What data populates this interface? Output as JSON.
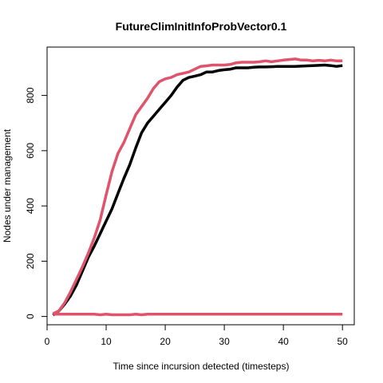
{
  "chart_data": {
    "type": "line",
    "title": "FutureClimInitInfoProbVector0.1",
    "xlabel": "Time since incursion detected (timesteps)",
    "ylabel": "Nodes under management",
    "xlim": [
      0,
      52
    ],
    "ylim": [
      -30,
      975
    ],
    "xticks": [
      0,
      10,
      20,
      30,
      40,
      50
    ],
    "yticks": [
      0,
      200,
      400,
      600,
      800
    ],
    "grid": false,
    "colors": {
      "black": "#000000",
      "red": "#DF536B"
    },
    "series": [
      {
        "color": "#000000",
        "x": [
          1,
          2,
          3,
          4,
          5,
          6,
          7,
          8,
          9,
          10,
          11,
          12,
          13,
          14,
          15,
          16,
          17,
          18,
          19,
          20,
          21,
          22,
          23,
          24,
          25,
          26,
          27,
          28,
          29,
          30,
          31,
          32,
          33,
          34,
          35,
          36,
          37,
          38,
          39,
          40,
          41,
          42,
          43,
          44,
          45,
          46,
          47,
          48,
          49,
          50
        ],
        "y": [
          5,
          20,
          45,
          75,
          115,
          165,
          215,
          255,
          300,
          345,
          390,
          445,
          500,
          550,
          610,
          665,
          700,
          725,
          750,
          775,
          800,
          830,
          855,
          865,
          870,
          875,
          885,
          885,
          890,
          893,
          895,
          900,
          900,
          900,
          902,
          903,
          903,
          904,
          905,
          905,
          905,
          905,
          906,
          907,
          908,
          909,
          910,
          908,
          905,
          908
        ]
      },
      {
        "color": "#DF536B",
        "x": [
          1,
          2,
          3,
          4,
          5,
          6,
          7,
          8,
          9,
          10,
          11,
          12,
          13,
          14,
          15,
          16,
          17,
          18,
          19,
          20,
          21,
          22,
          23,
          24,
          25,
          26,
          27,
          28,
          29,
          30,
          31,
          32,
          33,
          34,
          35,
          36,
          37,
          38,
          39,
          40,
          41,
          42,
          43,
          44,
          45,
          46,
          47,
          48,
          49,
          50
        ],
        "y": [
          10,
          20,
          50,
          90,
          135,
          180,
          230,
          285,
          350,
          440,
          525,
          590,
          630,
          680,
          730,
          760,
          790,
          825,
          850,
          860,
          865,
          875,
          880,
          885,
          895,
          905,
          907,
          910,
          910,
          910,
          912,
          918,
          920,
          920,
          920,
          922,
          925,
          922,
          925,
          928,
          930,
          932,
          928,
          928,
          925,
          927,
          925,
          928,
          925,
          925
        ]
      },
      {
        "color": "#DF536B",
        "x": [
          1,
          2,
          3,
          4,
          5,
          6,
          7,
          8,
          9,
          10,
          11,
          12,
          13,
          14,
          15,
          16,
          17,
          18,
          19,
          20,
          21,
          22,
          23,
          24,
          25,
          26,
          27,
          28,
          29,
          30,
          31,
          32,
          33,
          34,
          35,
          36,
          37,
          38,
          39,
          40,
          41,
          42,
          43,
          44,
          45,
          46,
          47,
          48,
          49,
          50
        ],
        "y": [
          8,
          8,
          8,
          8,
          8,
          8,
          8,
          8,
          6,
          8,
          6,
          6,
          6,
          6,
          8,
          6,
          8,
          8,
          8,
          8,
          8,
          8,
          8,
          8,
          8,
          8,
          8,
          8,
          8,
          8,
          8,
          8,
          8,
          8,
          8,
          8,
          8,
          8,
          8,
          8,
          8,
          8,
          8,
          8,
          8,
          8,
          8,
          8,
          8,
          8
        ]
      }
    ]
  }
}
